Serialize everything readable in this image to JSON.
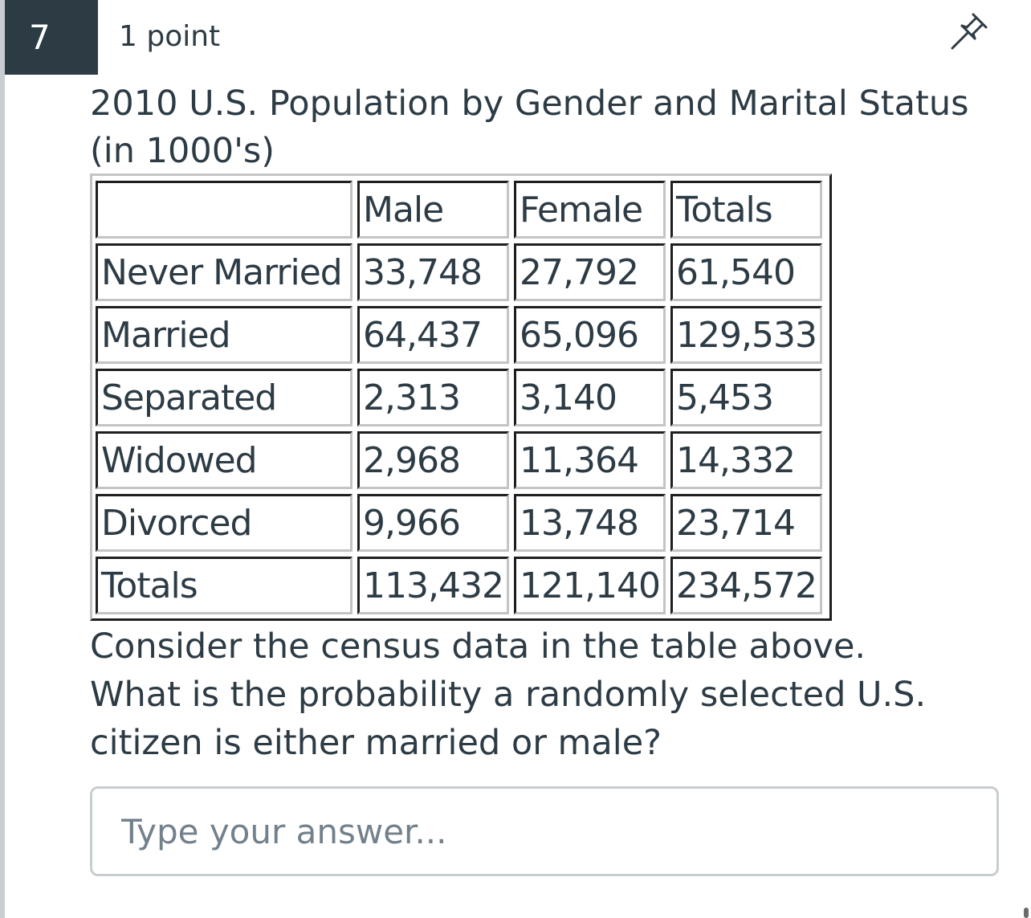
{
  "question": {
    "number": "7",
    "points": "1 point",
    "pin_icon": "pin-icon",
    "title": "2010 U.S. Population by Gender and Marital Status (in 1000's)",
    "prompt_lines": [
      "Consider the census data in the table above.",
      "What is the probability a randomly selected U.S.",
      "citizen is either married or male?"
    ],
    "answer": {
      "value": "",
      "placeholder": "Type your answer..."
    }
  },
  "table": {
    "headers": [
      "",
      "Male",
      "Female",
      "Totals"
    ],
    "rows": [
      [
        "Never Married",
        "33,748",
        "27,792",
        "61,540"
      ],
      [
        "Married",
        "64,437",
        "65,096",
        "129,533"
      ],
      [
        "Separated",
        "2,313",
        "3,140",
        "5,453"
      ],
      [
        "Widowed",
        "2,968",
        "11,364",
        "14,332"
      ],
      [
        "Divorced",
        "9,966",
        "13,748",
        "23,714"
      ],
      [
        "Totals",
        "113,432",
        "121,140",
        "234,572"
      ]
    ]
  }
}
